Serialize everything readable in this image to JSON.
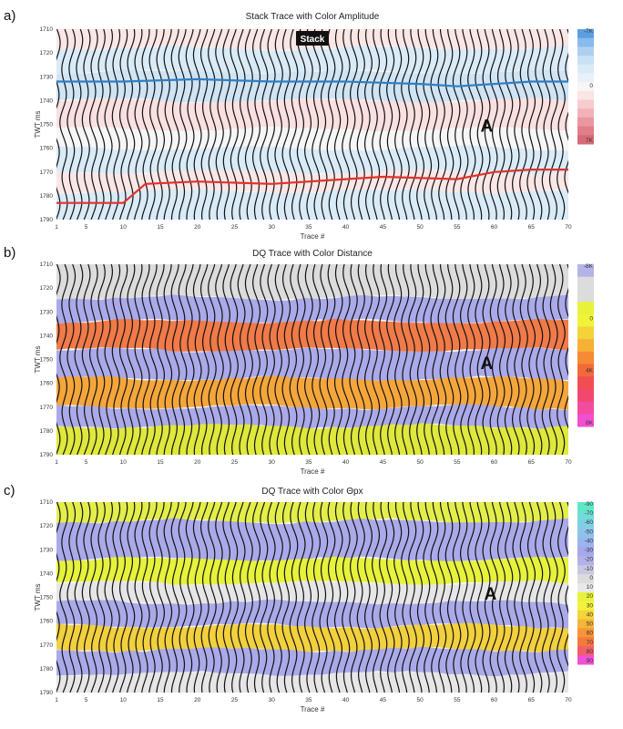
{
  "chart_data": [
    {
      "type": "heatmap",
      "panel_label": "a)",
      "title": "Stack Trace with Color Amplitude",
      "xlabel": "Trace #",
      "ylabel": "TWT ms",
      "x_ticks": [
        "1",
        "5",
        "10",
        "15",
        "20",
        "25",
        "30",
        "35",
        "40",
        "45",
        "50",
        "55",
        "60",
        "65",
        "70"
      ],
      "y_ticks": [
        "1710",
        "1720",
        "1730",
        "1740",
        "1750",
        "1760",
        "1770",
        "1780",
        "1790"
      ],
      "xlim": [
        1,
        70
      ],
      "ylim": [
        1710,
        1790
      ],
      "badge": "Stack",
      "annotation": "A",
      "colorbar": {
        "labels": [
          "-7K",
          "0",
          "7K"
        ],
        "colors": [
          "#5b9fe0",
          "#88bbea",
          "#aed0f0",
          "#c9e1f5",
          "#dbeaf7",
          "#e8f1f8",
          "#f6f6f6",
          "#fbe4e4",
          "#f7cccf",
          "#f1b3b8",
          "#ea98a0",
          "#e07f8a",
          "#d66a78"
        ]
      },
      "color_bands": [
        {
          "from": 1710,
          "to": 1718,
          "color": "#fbe6e6"
        },
        {
          "from": 1718,
          "to": 1728,
          "color": "#d9ebf7"
        },
        {
          "from": 1728,
          "to": 1740,
          "color": "#cfe4f4"
        },
        {
          "from": 1740,
          "to": 1752,
          "color": "#fae0e0"
        },
        {
          "from": 1752,
          "to": 1760,
          "color": "#f6f6f6"
        },
        {
          "from": 1760,
          "to": 1770,
          "color": "#d9ebf7"
        },
        {
          "from": 1770,
          "to": 1778,
          "color": "#fbe6e6"
        },
        {
          "from": 1778,
          "to": 1790,
          "color": "#d9ebf7"
        }
      ],
      "series": [
        {
          "color": "#2f7fc4",
          "x": [
            1,
            10,
            20,
            30,
            40,
            50,
            55,
            60,
            65,
            70
          ],
          "y": [
            1732,
            1732,
            1731,
            1732,
            1732,
            1733,
            1734,
            1733,
            1732,
            1732
          ]
        },
        {
          "color": "#e0332b",
          "x": [
            1,
            5,
            10,
            13,
            20,
            30,
            40,
            45,
            55,
            60,
            65,
            70
          ],
          "y": [
            1783,
            1783,
            1783,
            1775,
            1774,
            1775,
            1773,
            1772,
            1773,
            1770,
            1769,
            1769
          ]
        }
      ]
    },
    {
      "type": "heatmap",
      "panel_label": "b)",
      "title": "DQ Trace with Color Distance",
      "xlabel": "Trace #",
      "ylabel": "TWT ms",
      "x_ticks": [
        "1",
        "5",
        "10",
        "15",
        "20",
        "25",
        "30",
        "35",
        "40",
        "45",
        "50",
        "55",
        "60",
        "65",
        "70"
      ],
      "y_ticks": [
        "1710",
        "1720",
        "1730",
        "1740",
        "1750",
        "1760",
        "1770",
        "1780",
        "1790"
      ],
      "xlim": [
        1,
        70
      ],
      "ylim": [
        1710,
        1790
      ],
      "annotation": "A",
      "colorbar": {
        "labels": [
          "-8K",
          "0",
          "4K",
          "8K"
        ],
        "colors": [
          "#b3b3e8",
          "#dcdcdc",
          "#dcdcdc",
          "#e8f23a",
          "#f2f23a",
          "#f4d23a",
          "#f5b036",
          "#f58b35",
          "#f26a3a",
          "#f24d52",
          "#f2486e",
          "#f24ca0",
          "#f04fd0"
        ]
      },
      "color_bands": [
        {
          "from": 1710,
          "to": 1724,
          "color": "#dcdcdc"
        },
        {
          "from": 1724,
          "to": 1734,
          "color": "#aaaaea"
        },
        {
          "from": 1734,
          "to": 1746,
          "color": "#f07a48"
        },
        {
          "from": 1746,
          "to": 1758,
          "color": "#aaaaea"
        },
        {
          "from": 1758,
          "to": 1770,
          "color": "#f5a63b"
        },
        {
          "from": 1770,
          "to": 1778,
          "color": "#aaaaea"
        },
        {
          "from": 1778,
          "to": 1790,
          "color": "#dfe83c"
        }
      ]
    },
    {
      "type": "heatmap",
      "panel_label": "c)",
      "title": "DQ Trace with Color Θpx",
      "xlabel": "Trace #",
      "ylabel": "TWT ms",
      "x_ticks": [
        "1",
        "5",
        "10",
        "15",
        "20",
        "25",
        "30",
        "35",
        "40",
        "45",
        "50",
        "55",
        "60",
        "65",
        "70"
      ],
      "y_ticks": [
        "1710",
        "1720",
        "1730",
        "1740",
        "1750",
        "1760",
        "1770",
        "1780",
        "1790"
      ],
      "xlim": [
        1,
        70
      ],
      "ylim": [
        1710,
        1790
      ],
      "annotation": "A",
      "colorbar": {
        "labels": [
          "-90",
          "-70",
          "-60",
          "-50",
          "-40",
          "-30",
          "-20",
          "-10",
          "0",
          "10",
          "20",
          "30",
          "40",
          "50",
          "60",
          "70",
          "80",
          "90"
        ],
        "colors": [
          "#5ee8c6",
          "#6fdcd6",
          "#80cfe4",
          "#8ec2ec",
          "#9ab4ee",
          "#a7a7ee",
          "#b2b2e6",
          "#c8c8e2",
          "#dcdcdc",
          "#e8e8e8",
          "#e6f23c",
          "#f2f23c",
          "#f4d43a",
          "#f5b538",
          "#f59538",
          "#f27a3c",
          "#f05e6a",
          "#f050d2"
        ]
      },
      "color_bands": [
        {
          "from": 1710,
          "to": 1718,
          "color": "#e4ee4a"
        },
        {
          "from": 1718,
          "to": 1734,
          "color": "#aaaaea"
        },
        {
          "from": 1734,
          "to": 1744,
          "color": "#e6f23c"
        },
        {
          "from": 1744,
          "to": 1752,
          "color": "#e6e6e6"
        },
        {
          "from": 1752,
          "to": 1762,
          "color": "#aaaaea"
        },
        {
          "from": 1762,
          "to": 1772,
          "color": "#f2d03e"
        },
        {
          "from": 1772,
          "to": 1782,
          "color": "#aaaaea"
        },
        {
          "from": 1782,
          "to": 1790,
          "color": "#e6e6e6"
        }
      ]
    }
  ]
}
